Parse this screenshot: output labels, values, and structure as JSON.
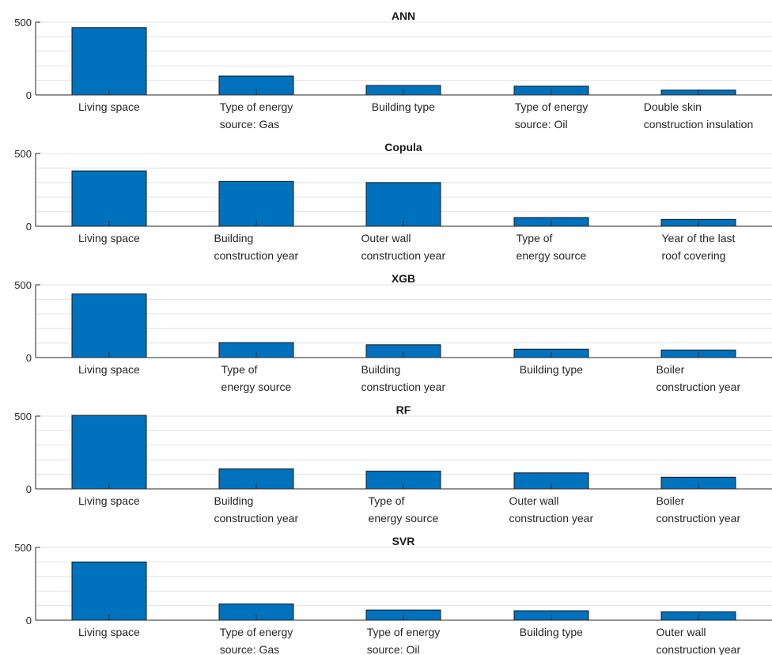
{
  "bar_color": "#0072BD",
  "chart_data": [
    {
      "type": "bar",
      "title": "ANN",
      "categories": [
        [
          "Living space"
        ],
        [
          "Type of energy",
          "source: Gas"
        ],
        [
          "Building type"
        ],
        [
          "Type of energy",
          "source: Oil"
        ],
        [
          "Double skin",
          "construction insulation"
        ]
      ],
      "values": [
        463,
        130,
        65,
        60,
        33
      ],
      "ylim": [
        0,
        500
      ],
      "yticks": [
        0,
        500
      ],
      "grid": true
    },
    {
      "type": "bar",
      "title": "Copula",
      "categories": [
        [
          "Living space"
        ],
        [
          "Building",
          "construction year"
        ],
        [
          "Outer wall",
          "construction year"
        ],
        [
          "Type of",
          "energy source"
        ],
        [
          "Year of the last",
          "roof covering"
        ]
      ],
      "values": [
        380,
        308,
        300,
        60,
        47
      ],
      "ylim": [
        0,
        500
      ],
      "yticks": [
        0,
        500
      ],
      "grid": true
    },
    {
      "type": "bar",
      "title": "XGB",
      "categories": [
        [
          "Living space"
        ],
        [
          "Type of",
          "energy source"
        ],
        [
          "Building",
          "construction year"
        ],
        [
          "Building type"
        ],
        [
          "Boiler",
          "construction year"
        ]
      ],
      "values": [
        437,
        103,
        88,
        58,
        52
      ],
      "ylim": [
        0,
        500
      ],
      "yticks": [
        0,
        500
      ],
      "grid": true
    },
    {
      "type": "bar",
      "title": "RF",
      "categories": [
        [
          "Living space"
        ],
        [
          "Building",
          "construction year"
        ],
        [
          "Type of",
          "energy source"
        ],
        [
          "Outer wall",
          "construction year"
        ],
        [
          "Boiler",
          "construction year"
        ]
      ],
      "values": [
        505,
        137,
        122,
        110,
        80
      ],
      "ylim": [
        0,
        500
      ],
      "yticks": [
        0,
        500
      ],
      "grid": true
    },
    {
      "type": "bar",
      "title": "SVR",
      "categories": [
        [
          "Living space"
        ],
        [
          "Type of energy",
          "source: Gas"
        ],
        [
          "Type of energy",
          "source: Oil"
        ],
        [
          "Building type"
        ],
        [
          "Outer wall",
          "construction year"
        ]
      ],
      "values": [
        400,
        112,
        70,
        65,
        58
      ],
      "ylim": [
        0,
        500
      ],
      "yticks": [
        0,
        500
      ],
      "grid": true
    }
  ]
}
